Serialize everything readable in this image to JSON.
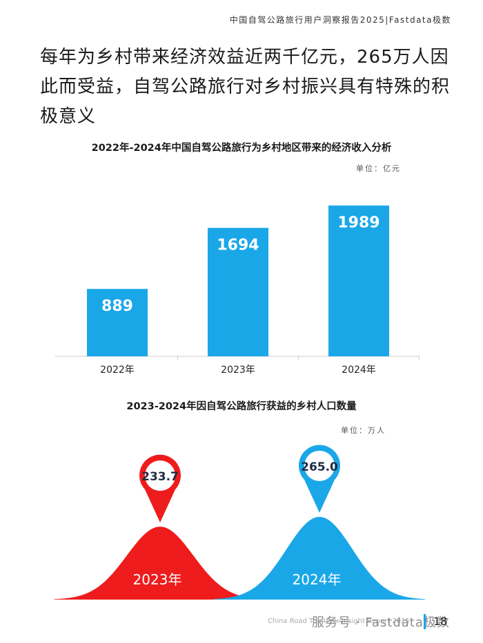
{
  "header": {
    "title": "中国自驾公路旅行用户洞察报告2025|Fastdata极数"
  },
  "headline": {
    "line1": "每年为乡村带来经济效益近两千亿元，265万人因",
    "line2": "此而受益，自驾公路旅行对乡村振兴具有特殊的积",
    "line3": "极意义"
  },
  "chart_data": [
    {
      "type": "bar",
      "title": "2022年-2024年中国自驾公路旅行为乡村地区带来的经济收入分析",
      "unit": "单位：亿元",
      "categories": [
        "2022年",
        "2023年",
        "2024年"
      ],
      "values": [
        889,
        1694,
        1989
      ],
      "ylim": [
        0,
        2200
      ],
      "grid": false,
      "color": "#1aa7e8"
    },
    {
      "type": "area",
      "title": "2023-2024年因自驾公路旅行获益的乡村人口数量",
      "unit": "单位：万人",
      "categories": [
        "2023年",
        "2024年"
      ],
      "values": [
        233.7,
        265.0
      ],
      "value_labels": [
        "233.7",
        "265.0"
      ],
      "colors": [
        "#ee1c1c",
        "#1aa7e8"
      ]
    }
  ],
  "footer": {
    "report_text": "China Road Trip User Insight Report 2025",
    "watermark": "服务号 · Fastdata极数",
    "page_number": "18"
  }
}
